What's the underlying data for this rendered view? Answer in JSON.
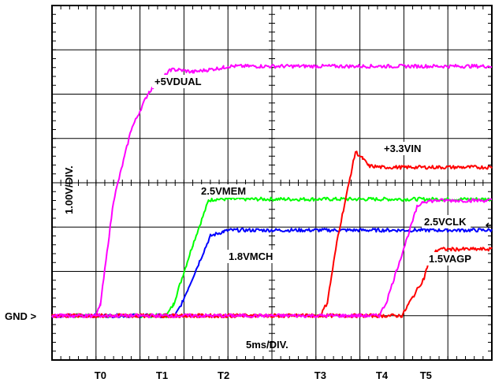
{
  "chart_data": {
    "type": "line",
    "title": "",
    "xlabel": "5ms/DIV.",
    "ylabel": "1.00V/DIV.",
    "ground_label": "GND >",
    "x_divisions": 10,
    "y_divisions": 8,
    "xlim": [
      0,
      50
    ],
    "ylim": [
      -1,
      7
    ],
    "x_unit": "ms",
    "y_unit": "V",
    "timing_markers": [
      {
        "label": "T0",
        "x": 5.5
      },
      {
        "label": "T1",
        "x": 12.5
      },
      {
        "label": "T2",
        "x": 19.5
      },
      {
        "label": "T3",
        "x": 30.5
      },
      {
        "label": "T4",
        "x": 37.5
      },
      {
        "label": "T5",
        "x": 42.5
      }
    ],
    "series": [
      {
        "name": "+5VDUAL",
        "color": "#ff00ff",
        "x": [
          0,
          5.0,
          5.5,
          7.0,
          9.0,
          11.0,
          13.5,
          14.3,
          16.0,
          19.5,
          20.0,
          50
        ],
        "y": [
          0,
          0,
          0.25,
          2.6,
          4.2,
          5.05,
          5.55,
          5.55,
          5.5,
          5.6,
          5.63,
          5.63
        ]
      },
      {
        "name": "2.5VMEM",
        "color": "#00ff00",
        "x": [
          0,
          13.0,
          13.8,
          16.0,
          17.8,
          18.5,
          50
        ],
        "y": [
          0,
          0,
          0.25,
          1.6,
          2.6,
          2.63,
          2.63
        ]
      },
      {
        "name": "1.8VMCH",
        "color": "#0000ff",
        "x": [
          0,
          14.0,
          14.8,
          18.0,
          19.5,
          20.2,
          50
        ],
        "y": [
          0,
          0,
          0.3,
          1.8,
          1.9,
          1.93,
          1.93
        ]
      },
      {
        "name": "+3.3VIN",
        "color": "#ff0000",
        "x": [
          0,
          30.5,
          31.3,
          32.5,
          34.5,
          35.3,
          36.0,
          37.5,
          40.0,
          50
        ],
        "y": [
          0,
          0,
          0.3,
          1.8,
          3.7,
          3.55,
          3.38,
          3.35,
          3.35,
          3.35
        ]
      },
      {
        "name": "2.5VCLK",
        "color": "#ff00ff",
        "x": [
          0,
          37.2,
          38.0,
          41.5,
          42.2,
          44.0,
          50
        ],
        "y": [
          0,
          0,
          0.3,
          2.45,
          2.58,
          2.6,
          2.6
        ]
      },
      {
        "name": "1.5VAGP",
        "color": "#ff0000",
        "x": [
          0,
          39.8,
          40.5,
          42.3,
          43.0,
          44.0,
          50
        ],
        "y": [
          0,
          0,
          0.25,
          0.85,
          1.35,
          1.5,
          1.5
        ]
      }
    ],
    "annotations": [
      {
        "text": "+5VDUAL",
        "series": "+5VDUAL"
      },
      {
        "text": "+3.3VIN",
        "series": "+3.3VIN"
      },
      {
        "text": "2.5VMEM",
        "series": "2.5VMEM"
      },
      {
        "text": "1.8VMCH",
        "series": "1.8VMCH"
      },
      {
        "text": "2.5VCLK",
        "series": "2.5VCLK"
      },
      {
        "text": "1.5VAGP",
        "series": "1.5VAGP"
      }
    ],
    "grid": true
  }
}
